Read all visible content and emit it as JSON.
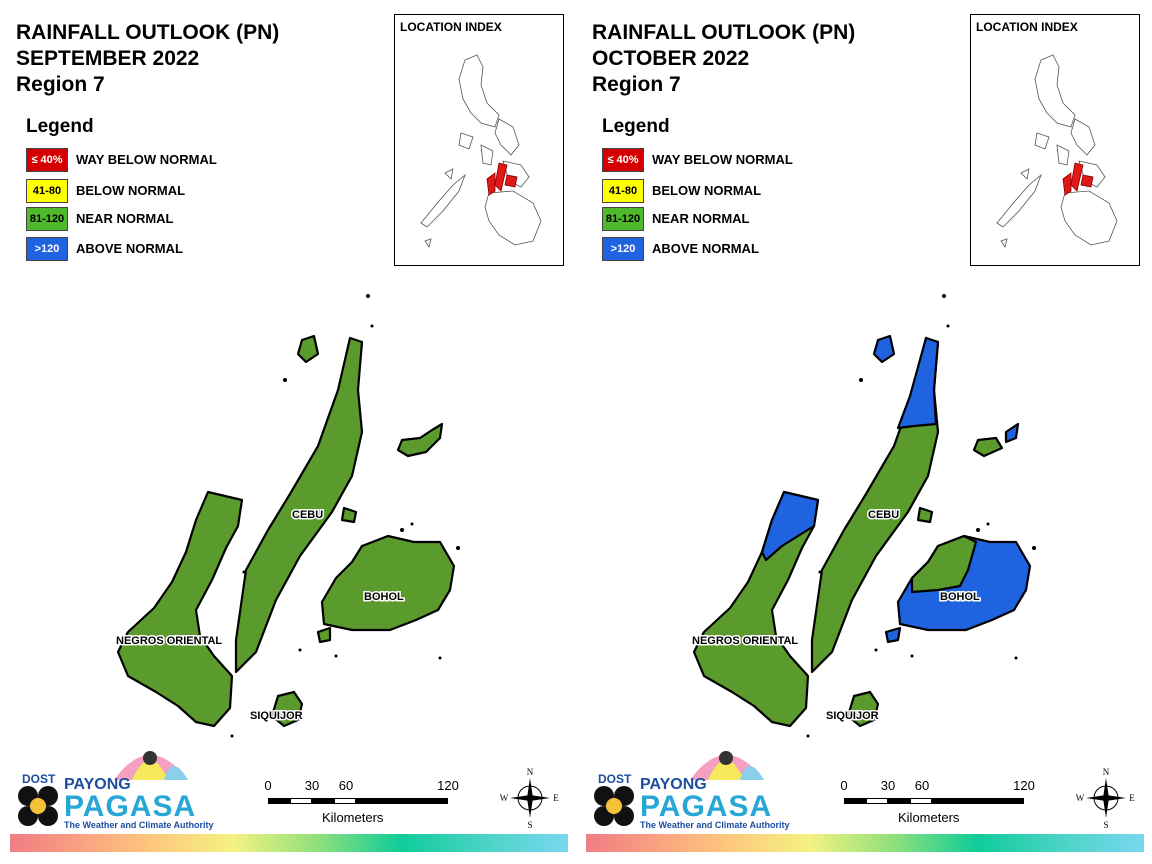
{
  "panels": [
    {
      "title_line1": "RAINFALL OUTLOOK (PN)",
      "title_line2": "SEPTEMBER 2022",
      "title_line3": "Region 7",
      "legend_title": "Legend",
      "location_index_title": "LOCATION INDEX",
      "labels": {
        "cebu": "CEBU",
        "bohol": "BOHOL",
        "negros": "NEGROS ORIENTAL",
        "siquijor": "SIQUIJOR"
      },
      "province_categories": {
        "cebu": "NEAR NORMAL",
        "bohol": "NEAR NORMAL",
        "negros_oriental": "NEAR NORMAL",
        "siquijor": "NEAR NORMAL"
      }
    },
    {
      "title_line1": "RAINFALL OUTLOOK (PN)",
      "title_line2": "OCTOBER 2022",
      "title_line3": "Region 7",
      "legend_title": "Legend",
      "location_index_title": "LOCATION INDEX",
      "labels": {
        "cebu": "CEBU",
        "bohol": "BOHOL",
        "negros": "NEGROS ORIENTAL",
        "siquijor": "SIQUIJOR"
      },
      "province_categories": {
        "cebu": "NEAR NORMAL; ABOVE NORMAL (north)",
        "bohol": "ABOVE NORMAL; NEAR NORMAL (northwest)",
        "negros_oriental": "NEAR NORMAL; ABOVE NORMAL (north)",
        "siquijor": "NEAR NORMAL"
      }
    }
  ],
  "legend": [
    {
      "range": "≤ 40%",
      "label": "WAY BELOW NORMAL",
      "color": "#d40000",
      "text_color": "#ffffff"
    },
    {
      "range": "41-80",
      "label": "BELOW NORMAL",
      "color": "#ffff00",
      "text_color": "#000000"
    },
    {
      "range": "81-120",
      "label": "NEAR NORMAL",
      "color": "#4fb82d",
      "text_color": "#000000"
    },
    {
      "range": ">120",
      "label": "ABOVE NORMAL",
      "color": "#1f63e0",
      "text_color": "#ffffff"
    }
  ],
  "scale": {
    "ticks": [
      "0",
      "30",
      "60",
      "120"
    ],
    "units": "Kilometers"
  },
  "compass": {
    "n": "N",
    "s": "S",
    "e": "E",
    "w": "W"
  },
  "logo": {
    "dost": "DOST",
    "payong": "PAYONG",
    "pagasa": "PAGASA",
    "tagline": "The Weather and Climate Authority"
  },
  "colors": {
    "near_normal": "#5b9a2c",
    "above_normal": "#1f63e0",
    "highlight_region": "#e01818"
  }
}
